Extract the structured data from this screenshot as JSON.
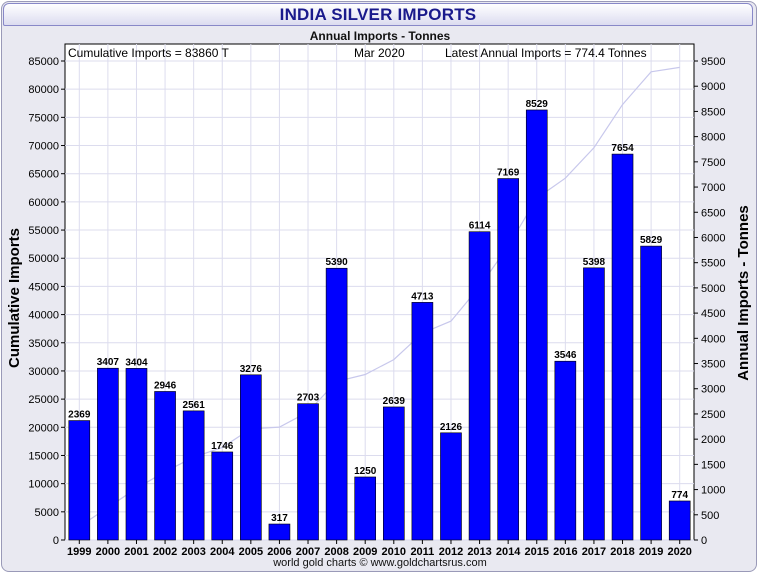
{
  "title": "INDIA SILVER IMPORTS",
  "subtitle": "Annual Imports - Tonnes",
  "footer": "world gold charts © www.goldchartsrus.com",
  "annotations": {
    "cumulative": "Cumulative Imports = 83860 T",
    "date": "Mar 2020",
    "latest": "Latest Annual Imports = 774.4 Tonnes"
  },
  "colors": {
    "bar": "#0000ff",
    "cumulative_line": "#c8c8ec",
    "grid": "#dcdcee",
    "title": "#1a1a8c"
  },
  "chart_data": {
    "type": "bar",
    "categories": [
      "1999",
      "2000",
      "2001",
      "2002",
      "2003",
      "2004",
      "2005",
      "2006",
      "2007",
      "2008",
      "2009",
      "2010",
      "2011",
      "2012",
      "2013",
      "2014",
      "2015",
      "2016",
      "2017",
      "2018",
      "2019",
      "2020"
    ],
    "series": [
      {
        "name": "Annual Imports - Tonnes",
        "type": "bar",
        "axis": "right",
        "values": [
          2369,
          3407,
          3404,
          2946,
          2561,
          1746,
          3276,
          317,
          2703,
          5390,
          1250,
          2639,
          4713,
          2126,
          6114,
          7169,
          8529,
          3546,
          5398,
          7654,
          5829,
          774
        ],
        "data_labels": [
          "2369",
          "3407",
          "3404",
          "2946",
          "2561",
          "1746",
          "3276",
          "317",
          "2703",
          "5390",
          "1250",
          "2639",
          "4713",
          "2126",
          "6114",
          "7169",
          "8529",
          "3546",
          "5398",
          "7654",
          "5829",
          "774"
        ]
      },
      {
        "type": "line",
        "axis": "left",
        "values": [
          2369,
          5776,
          9180,
          12126,
          14687,
          16433,
          19709,
          20026,
          22729,
          28119,
          29369,
          32008,
          36721,
          38847,
          44961,
          52130,
          60659,
          64205,
          69603,
          77257,
          83086,
          83860
        ]
      }
    ],
    "ylabel_left": "Cumulative Imports",
    "ylabel_right": "Annual Imports - Tonnes",
    "ylim_left": [
      0,
      85000
    ],
    "ylim_right": [
      0,
      9500
    ],
    "yticks_left": [
      "0",
      "5000",
      "10000",
      "15000",
      "20000",
      "25000",
      "30000",
      "35000",
      "40000",
      "45000",
      "50000",
      "55000",
      "60000",
      "65000",
      "70000",
      "75000",
      "80000",
      "85000"
    ],
    "yticks_right": [
      "0",
      "500",
      "1000",
      "1500",
      "2000",
      "2500",
      "3000",
      "3500",
      "4000",
      "4500",
      "5000",
      "5500",
      "6000",
      "6500",
      "7000",
      "7500",
      "8000",
      "8500",
      "9000",
      "9500"
    ],
    "grid": true
  }
}
